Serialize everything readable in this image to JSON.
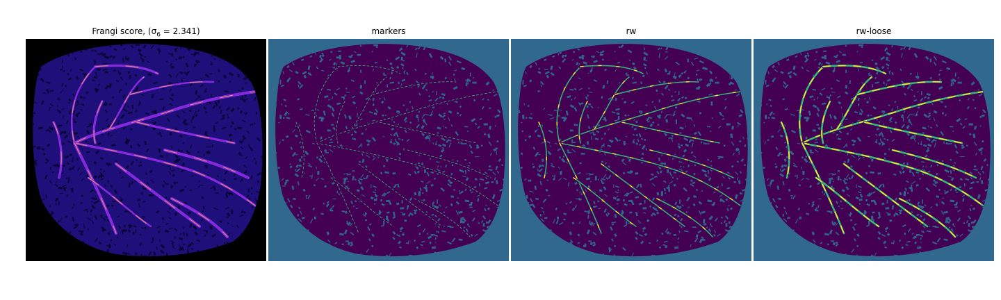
{
  "panels": [
    {
      "id": "frangi",
      "title": "Frangi score, (σ",
      "title_sub": "6",
      "title_tail": " = 2.341)",
      "colormap": "magma"
    },
    {
      "id": "markers",
      "title": "markers",
      "colormap": "viridis"
    },
    {
      "id": "rw",
      "title": "rw",
      "colormap": "viridis"
    },
    {
      "id": "rw-loose",
      "title": "rw-loose",
      "colormap": "viridis"
    }
  ],
  "colors": {
    "frangi_bg": "#000000",
    "frangi_tissue": "#1f0f7a",
    "frangi_texture": "#07032e",
    "frangi_vessel_mid": "#8a2be2",
    "frangi_vessel_hot": "#f59a5a",
    "label_bg": "#31688e",
    "label_tissue": "#440154",
    "label_vessel": "#35b779",
    "label_bright": "#fde725"
  }
}
